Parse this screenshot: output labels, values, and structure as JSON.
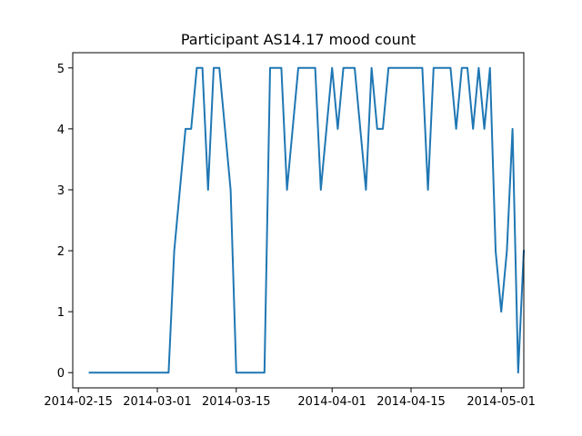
{
  "chart_data": {
    "type": "line",
    "title": "Participant AS14.17 mood count",
    "xlabel": "",
    "ylabel": "",
    "x_type": "date",
    "xlim": [
      "2014-02-14",
      "2014-05-05"
    ],
    "ylim": [
      -0.25,
      5.25
    ],
    "xticks": [
      "2014-02-15",
      "2014-03-01",
      "2014-03-15",
      "2014-04-01",
      "2014-04-15",
      "2014-05-01"
    ],
    "yticks": [
      0,
      1,
      2,
      3,
      4,
      5
    ],
    "grid": false,
    "series": [
      {
        "color": "#1f77b4",
        "points": [
          [
            "2014-02-17",
            0
          ],
          [
            "2014-03-03",
            0
          ],
          [
            "2014-03-04",
            2
          ],
          [
            "2014-03-05",
            3
          ],
          [
            "2014-03-06",
            4
          ],
          [
            "2014-03-07",
            4
          ],
          [
            "2014-03-08",
            5
          ],
          [
            "2014-03-09",
            5
          ],
          [
            "2014-03-10",
            3
          ],
          [
            "2014-03-11",
            5
          ],
          [
            "2014-03-12",
            5
          ],
          [
            "2014-03-14",
            3
          ],
          [
            "2014-03-15",
            0
          ],
          [
            "2014-03-20",
            0
          ],
          [
            "2014-03-21",
            5
          ],
          [
            "2014-03-23",
            5
          ],
          [
            "2014-03-24",
            3
          ],
          [
            "2014-03-26",
            5
          ],
          [
            "2014-03-29",
            5
          ],
          [
            "2014-03-30",
            3
          ],
          [
            "2014-04-01",
            5
          ],
          [
            "2014-04-02",
            4
          ],
          [
            "2014-04-03",
            5
          ],
          [
            "2014-04-05",
            5
          ],
          [
            "2014-04-07",
            3
          ],
          [
            "2014-04-08",
            5
          ],
          [
            "2014-04-09",
            4
          ],
          [
            "2014-04-10",
            4
          ],
          [
            "2014-04-11",
            5
          ],
          [
            "2014-04-17",
            5
          ],
          [
            "2014-04-18",
            3
          ],
          [
            "2014-04-19",
            5
          ],
          [
            "2014-04-22",
            5
          ],
          [
            "2014-04-23",
            4
          ],
          [
            "2014-04-24",
            5
          ],
          [
            "2014-04-25",
            5
          ],
          [
            "2014-04-26",
            4
          ],
          [
            "2014-04-27",
            5
          ],
          [
            "2014-04-28",
            4
          ],
          [
            "2014-04-29",
            5
          ],
          [
            "2014-04-30",
            2
          ],
          [
            "2014-05-01",
            1
          ],
          [
            "2014-05-02",
            2
          ],
          [
            "2014-05-03",
            4
          ],
          [
            "2014-05-04",
            0
          ],
          [
            "2014-05-05",
            2
          ]
        ]
      }
    ]
  }
}
